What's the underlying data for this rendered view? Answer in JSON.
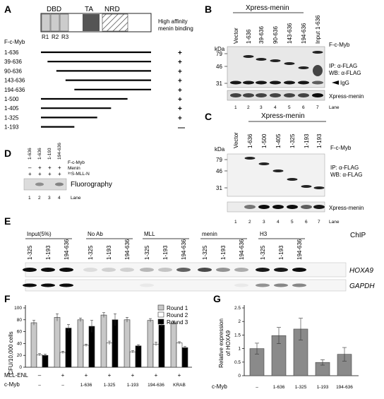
{
  "panel_a": {
    "letter": "A",
    "domains": [
      "DBD",
      "TA",
      "NRD"
    ],
    "repeats": [
      "R1",
      "R2",
      "R3"
    ],
    "binding_header_1": "High affinity",
    "binding_header_2": "menin binding",
    "construct_header": "F-c-Myb",
    "constructs": [
      {
        "label": "1-636",
        "start": 1,
        "end": 636,
        "binding": "+"
      },
      {
        "label": "39-636",
        "start": 39,
        "end": 636,
        "binding": "+"
      },
      {
        "label": "90-636",
        "start": 90,
        "end": 636,
        "binding": "+"
      },
      {
        "label": "143-636",
        "start": 143,
        "end": 636,
        "binding": "+"
      },
      {
        "label": "194-636",
        "start": 194,
        "end": 636,
        "binding": "+"
      },
      {
        "label": "1-500",
        "start": 1,
        "end": 500,
        "binding": "+"
      },
      {
        "label": "1-405",
        "start": 1,
        "end": 405,
        "binding": "+"
      },
      {
        "label": "1-325",
        "start": 1,
        "end": 325,
        "binding": "+"
      },
      {
        "label": "1-193",
        "start": 1,
        "end": 193,
        "binding": "—"
      }
    ]
  },
  "panel_b": {
    "letter": "B",
    "title": "Xpress-menin",
    "lanes_labels": [
      "Vector",
      "1-636",
      "39-636",
      "90-636",
      "143-636",
      "194-636",
      "Input 1-636"
    ],
    "header": "F-c-Myb",
    "kda_label": "kDa",
    "kda": [
      "79",
      "46",
      "31"
    ],
    "ip": "IP: α-FLAG",
    "wb": "WB: α-FLAG",
    "igg": "IgG",
    "menin_label": "Xpress-menin",
    "lane_numbers": [
      "1",
      "2",
      "3",
      "4",
      "5",
      "6",
      "7"
    ],
    "lane_word": "Lane"
  },
  "panel_c": {
    "letter": "C",
    "title": "Xpress-menin",
    "lanes_labels": [
      "Vector",
      "1-636",
      "1-500",
      "1-405",
      "1-325",
      "1-193",
      "1-193"
    ],
    "header": "F-c-Myb",
    "kda_label": "kDa",
    "kda": [
      "79",
      "46",
      "31"
    ],
    "ip": "IP: α-FLAG",
    "wb": "WB: α-FLAG",
    "menin_label": "Xpress-menin",
    "lane_numbers": [
      "1",
      "2",
      "3",
      "4",
      "5",
      "6",
      "7"
    ],
    "lane_word": "Lane"
  },
  "panel_d": {
    "letter": "D",
    "lane_labels": [
      "1-636",
      "1-636",
      "1-193",
      "194-636"
    ],
    "row_headers": [
      "F-c-Myb",
      "Menin",
      "³⁵S-MLL-N"
    ],
    "menin_row": [
      "–",
      "+",
      "+",
      "+"
    ],
    "mll_row": [
      "+",
      "+",
      "+",
      "+"
    ],
    "fluoro": "Fluorography",
    "lane_numbers": [
      "1",
      "2",
      "3",
      "4"
    ],
    "lane_word": "Lane"
  },
  "panel_e": {
    "letter": "E",
    "groups": [
      "Input(5%)",
      "No Ab",
      "MLL",
      "menin",
      "H3"
    ],
    "lane_labels": [
      "1-325",
      "1-193",
      "194-636"
    ],
    "chip": "ChIP",
    "genes": [
      "HOXA9",
      "GAPDH"
    ]
  },
  "panel_f": {
    "letter": "F",
    "ylabel": "CFU/10,000 cells",
    "mll_label": "MLL-ENL",
    "cmyb_label": "c-Myb",
    "mll_row": [
      "–",
      "+",
      "+",
      "+",
      "+",
      "+",
      "+"
    ],
    "cmyb_row": [
      "–",
      "–",
      "1-636",
      "1-325",
      "1-193",
      "194-636",
      "KRAB"
    ],
    "legend": [
      "Round 1",
      "Round 2",
      "Round 3"
    ]
  },
  "panel_g": {
    "letter": "G",
    "ylabel_1": "Relative expression",
    "ylabel_2": "of HOXA9",
    "cmyb_label": "c-Myb"
  },
  "chart_data": [
    {
      "type": "bar",
      "panel": "F",
      "ylabel": "CFU/10,000 cells",
      "ylim": [
        0,
        100
      ],
      "yticks": [
        0,
        20,
        40,
        60,
        80,
        100
      ],
      "categories": [
        "–/–",
        "+/–",
        "+/1-636",
        "+/1-325",
        "+/1-193",
        "+/194-636",
        "+/KRAB"
      ],
      "series": [
        {
          "name": "Round 1",
          "values": [
            75,
            84,
            80,
            88,
            80,
            79,
            75
          ],
          "errors": [
            4,
            6,
            3,
            4,
            4,
            3,
            3
          ]
        },
        {
          "name": "Round 2",
          "values": [
            21,
            25,
            37,
            41,
            26,
            39,
            41
          ],
          "errors": [
            2,
            2,
            2,
            3,
            2,
            3,
            2
          ]
        },
        {
          "name": "Round 3",
          "values": [
            20,
            66,
            69,
            80,
            36,
            71,
            33
          ],
          "errors": [
            2,
            6,
            10,
            10,
            2,
            3,
            2
          ]
        }
      ],
      "legend_position": "top-right",
      "grid": false
    },
    {
      "type": "bar",
      "panel": "G",
      "ylabel": "Relative expression of HOXA9",
      "ylim": [
        0,
        2.5
      ],
      "yticks": [
        0,
        0.5,
        1,
        1.5,
        2,
        2.5
      ],
      "ytick_labels": [
        "0",
        "0.5",
        "1",
        "1.5",
        "2",
        "2.5"
      ],
      "categories": [
        "–",
        "1-636",
        "1-325",
        "1-193",
        "194-636"
      ],
      "values": [
        1.0,
        1.48,
        1.72,
        0.49,
        0.79
      ],
      "errors": [
        0.2,
        0.3,
        0.4,
        0.1,
        0.25
      ],
      "grid": false
    }
  ]
}
